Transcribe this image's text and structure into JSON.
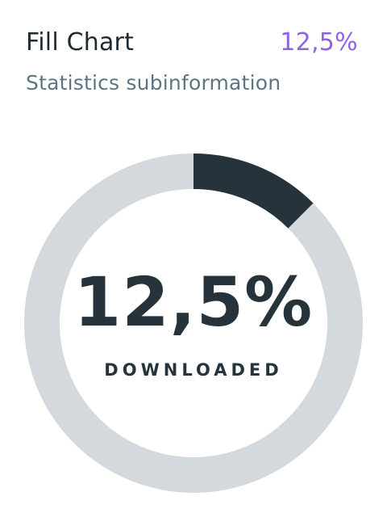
{
  "header": {
    "title": "Fill Chart",
    "value": "12,5%",
    "subtitle": "Statistics subinformation"
  },
  "ring": {
    "percent_label": "12,5%",
    "caption": "DOWNLOADED",
    "fraction": 0.125
  },
  "colors": {
    "accent": "#8e63e6",
    "fill": "#26333a",
    "track": "#d3d9dd",
    "subtitle": "#5c7585",
    "text": "#1f2a30"
  }
}
